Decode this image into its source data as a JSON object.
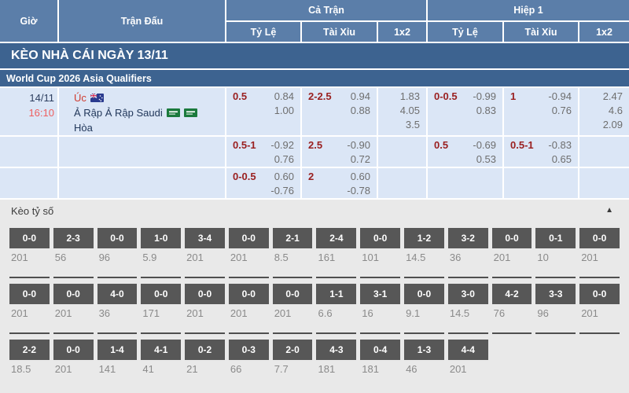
{
  "header": {
    "time_col": "Giờ",
    "match_col": "Trận Đấu",
    "full_match": "Cả Trận",
    "first_half": "Hiệp 1",
    "sub_cols": [
      "Tỷ Lệ",
      "Tài Xỉu",
      "1x2",
      "Tỷ Lệ",
      "Tài Xỉu",
      "1x2"
    ]
  },
  "banner_title": "KÈO NHÀ CÁI NGÀY 13/11",
  "league_title": "World Cup 2026 Asia Qualifiers",
  "match": {
    "date": "14/11",
    "time": "16:10",
    "home_team": "Úc",
    "away_team": "Ả Rập Ả Rập Saudi",
    "draw_label": "Hòa",
    "home_flag": "australia-flag",
    "away_flag": "saudi-arabia-flag"
  },
  "odds_rows": [
    {
      "ft_handicap": "0.5",
      "ft_handicap_odds": [
        "0.84",
        "1.00"
      ],
      "ft_ou": "2-2.5",
      "ft_ou_odds": [
        "0.94",
        "0.88"
      ],
      "ft_1x2": [
        "1.83",
        "4.05",
        "3.5"
      ],
      "h1_handicap": "0-0.5",
      "h1_handicap_odds": [
        "-0.99",
        "0.83"
      ],
      "h1_ou": "1",
      "h1_ou_odds": [
        "-0.94",
        "0.76"
      ],
      "h1_1x2": [
        "2.47",
        "4.6",
        "2.09"
      ]
    },
    {
      "ft_handicap": "0.5-1",
      "ft_handicap_odds": [
        "-0.92",
        "0.76"
      ],
      "ft_ou": "2.5",
      "ft_ou_odds": [
        "-0.90",
        "0.72"
      ],
      "ft_1x2": [],
      "h1_handicap": "0.5",
      "h1_handicap_odds": [
        "-0.69",
        "0.53"
      ],
      "h1_ou": "0.5-1",
      "h1_ou_odds": [
        "-0.83",
        "0.65"
      ],
      "h1_1x2": []
    },
    {
      "ft_handicap": "0-0.5",
      "ft_handicap_odds": [
        "0.60",
        "-0.76"
      ],
      "ft_ou": "2",
      "ft_ou_odds": [
        "0.60",
        "-0.78"
      ],
      "ft_1x2": [],
      "h1_handicap": "",
      "h1_handicap_odds": [],
      "h1_ou": "",
      "h1_ou_odds": [],
      "h1_1x2": []
    }
  ],
  "score_section": {
    "title": "Kèo tỷ số",
    "collapse_icon": "▲",
    "rows": [
      [
        {
          "score": "0-0",
          "odds": "201"
        },
        {
          "score": "2-3",
          "odds": "56"
        },
        {
          "score": "0-0",
          "odds": "96"
        },
        {
          "score": "1-0",
          "odds": "5.9"
        },
        {
          "score": "3-4",
          "odds": "201"
        },
        {
          "score": "0-0",
          "odds": "201"
        },
        {
          "score": "2-1",
          "odds": "8.5"
        },
        {
          "score": "2-4",
          "odds": "161"
        },
        {
          "score": "0-0",
          "odds": "101"
        },
        {
          "score": "1-2",
          "odds": "14.5"
        },
        {
          "score": "3-2",
          "odds": "36"
        },
        {
          "score": "0-0",
          "odds": "201"
        },
        {
          "score": "0-1",
          "odds": "10"
        },
        {
          "score": "0-0",
          "odds": "201"
        }
      ],
      [
        {
          "score": "0-0",
          "odds": "201"
        },
        {
          "score": "0-0",
          "odds": "201"
        },
        {
          "score": "4-0",
          "odds": "36"
        },
        {
          "score": "0-0",
          "odds": "171"
        },
        {
          "score": "0-0",
          "odds": "201"
        },
        {
          "score": "0-0",
          "odds": "201"
        },
        {
          "score": "0-0",
          "odds": "201"
        },
        {
          "score": "1-1",
          "odds": "6.6"
        },
        {
          "score": "3-1",
          "odds": "16"
        },
        {
          "score": "0-0",
          "odds": "9.1"
        },
        {
          "score": "3-0",
          "odds": "14.5"
        },
        {
          "score": "4-2",
          "odds": "76"
        },
        {
          "score": "3-3",
          "odds": "96"
        },
        {
          "score": "0-0",
          "odds": "201"
        }
      ],
      [
        {
          "score": "2-2",
          "odds": "18.5"
        },
        {
          "score": "0-0",
          "odds": "201"
        },
        {
          "score": "1-4",
          "odds": "141"
        },
        {
          "score": "4-1",
          "odds": "41"
        },
        {
          "score": "0-2",
          "odds": "21"
        },
        {
          "score": "0-3",
          "odds": "66"
        },
        {
          "score": "2-0",
          "odds": "7.7"
        },
        {
          "score": "4-3",
          "odds": "181"
        },
        {
          "score": "0-4",
          "odds": "181"
        },
        {
          "score": "1-3",
          "odds": "46"
        },
        {
          "score": "4-4",
          "odds": "201"
        },
        null,
        null,
        null
      ]
    ]
  },
  "colors": {
    "header_bg": "#5b7ea9",
    "banner_bg": "#3d6390",
    "row_bg": "#dbe6f6",
    "handicap_text": "#9a2020",
    "odds_text": "#6e6e6e",
    "time_text": "#ee5f5f",
    "home_text": "#d03b2f",
    "team_text": "#21375a",
    "section_bg": "#e9e9e9",
    "score_box_bg": "#575757",
    "score_val_text": "#8a8a8a"
  }
}
